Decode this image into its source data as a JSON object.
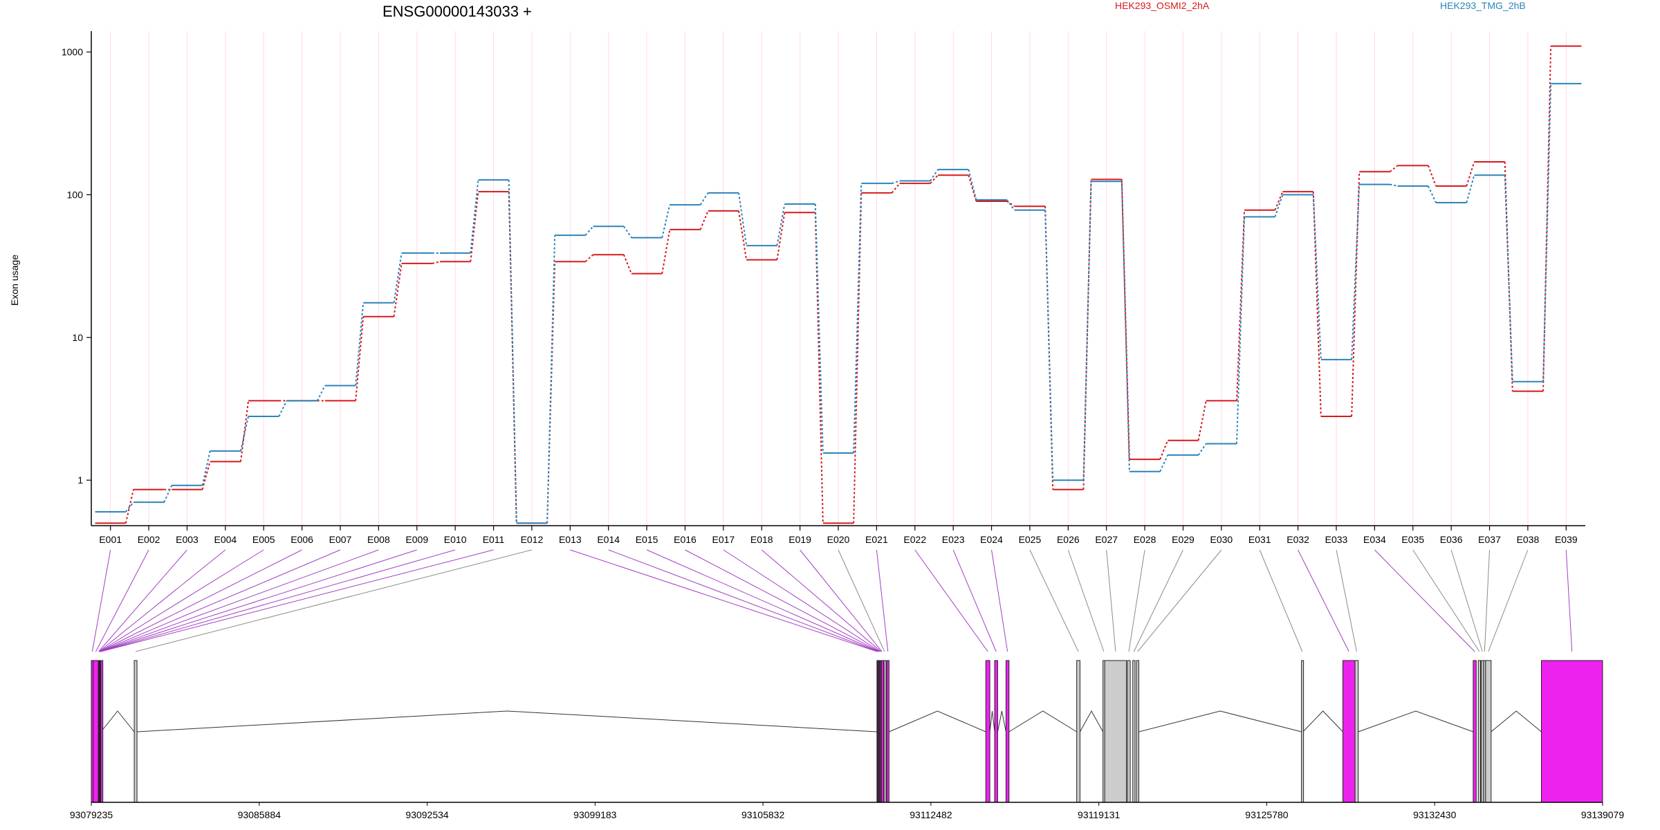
{
  "chart_data": {
    "type": "line",
    "title": "ENSG00000143033 +",
    "ylabel": "Exon usage",
    "xlabel": "",
    "yscale": "log",
    "ylim": [
      0.48,
      1400
    ],
    "yticks": [
      {
        "value": 1,
        "label": "1"
      },
      {
        "value": 10,
        "label": "10"
      },
      {
        "value": 100,
        "label": "100"
      },
      {
        "value": 1000,
        "label": "1000"
      }
    ],
    "categories": [
      "E001",
      "E002",
      "E003",
      "E004",
      "E005",
      "E006",
      "E007",
      "E008",
      "E009",
      "E010",
      "E011",
      "E012",
      "E013",
      "E014",
      "E015",
      "E016",
      "E017",
      "E018",
      "E019",
      "E020",
      "E021",
      "E022",
      "E023",
      "E024",
      "E025",
      "E026",
      "E027",
      "E028",
      "E029",
      "E030",
      "E031",
      "E032",
      "E033",
      "E034",
      "E035",
      "E036",
      "E037",
      "E038",
      "E039"
    ],
    "legend_position": "top",
    "series": [
      {
        "name": "HEK293_OSMI2_2hA",
        "color": "#d7191c",
        "values": [
          0.5,
          0.86,
          0.86,
          1.35,
          3.6,
          3.6,
          3.6,
          14,
          33,
          34,
          105,
          0.5,
          34,
          38,
          28,
          57,
          77,
          35,
          75,
          0.5,
          103,
          120,
          137,
          90,
          83,
          0.86,
          128,
          1.4,
          1.9,
          3.6,
          78,
          105,
          2.8,
          145,
          160,
          115,
          170,
          4.2,
          1100
        ]
      },
      {
        "name": "HEK293_TMG_2hB",
        "color": "#2b83ba",
        "values": [
          0.6,
          0.7,
          0.92,
          1.6,
          2.8,
          3.6,
          4.6,
          17.5,
          39,
          39,
          127,
          0.5,
          52,
          60,
          50,
          85,
          103,
          44,
          86,
          1.55,
          120,
          125,
          150,
          92,
          78,
          1.0,
          124,
          1.15,
          1.5,
          1.8,
          70,
          100,
          7.0,
          118,
          115,
          88,
          137,
          4.9,
          600
        ]
      }
    ],
    "gene_model": {
      "genomic_range": [
        93079235,
        93139079
      ],
      "genomic_ticks": [
        93079235,
        93085884,
        93092534,
        93099183,
        93105832,
        93112482,
        93119131,
        93125780,
        93132430,
        93139079
      ],
      "highlight_color": "#ee22ee",
      "default_color": "#cccccc",
      "exons": [
        {
          "id": "E001",
          "start": 93079235,
          "end": 93079310,
          "highlight": true
        },
        {
          "id": "E002",
          "start": 93079310,
          "end": 93079515,
          "highlight": true
        },
        {
          "id": "E003",
          "start": 93079515,
          "end": 93079540,
          "highlight": true
        },
        {
          "id": "E004",
          "start": 93079540,
          "end": 93079550,
          "highlight": true
        },
        {
          "id": "E005",
          "start": 93079550,
          "end": 93079560,
          "highlight": true
        },
        {
          "id": "E006",
          "start": 93079560,
          "end": 93079570,
          "highlight": true
        },
        {
          "id": "E007",
          "start": 93079570,
          "end": 93079580,
          "highlight": true
        },
        {
          "id": "E008",
          "start": 93079580,
          "end": 93079590,
          "highlight": true
        },
        {
          "id": "E009",
          "start": 93079590,
          "end": 93079600,
          "highlight": true
        },
        {
          "id": "E010",
          "start": 93079600,
          "end": 93079610,
          "highlight": true
        },
        {
          "id": "E011",
          "start": 93079610,
          "end": 93079620,
          "highlight": true
        },
        {
          "id": "E012",
          "start": 93080935,
          "end": 93081045,
          "highlight": false
        },
        {
          "id": "E013",
          "start": 93110345,
          "end": 93110365,
          "highlight": true
        },
        {
          "id": "E014",
          "start": 93110365,
          "end": 93110395,
          "highlight": true
        },
        {
          "id": "E015",
          "start": 93110395,
          "end": 93110425,
          "highlight": true
        },
        {
          "id": "E016",
          "start": 93110425,
          "end": 93110455,
          "highlight": true
        },
        {
          "id": "E017",
          "start": 93110455,
          "end": 93110485,
          "highlight": true
        },
        {
          "id": "E018",
          "start": 93110485,
          "end": 93110525,
          "highlight": true
        },
        {
          "id": "E019",
          "start": 93110525,
          "end": 93110555,
          "highlight": true
        },
        {
          "id": "E020",
          "start": 93110625,
          "end": 93110665,
          "highlight": false
        },
        {
          "id": "E021",
          "start": 93110735,
          "end": 93110825,
          "highlight": true
        },
        {
          "id": "E022",
          "start": 93114655,
          "end": 93114815,
          "highlight": true
        },
        {
          "id": "E023",
          "start": 93115005,
          "end": 93115125,
          "highlight": true
        },
        {
          "id": "E024",
          "start": 93115455,
          "end": 93115575,
          "highlight": true
        },
        {
          "id": "E025",
          "start": 93118255,
          "end": 93118385,
          "highlight": false
        },
        {
          "id": "E026",
          "start": 93119295,
          "end": 93119365,
          "highlight": false
        },
        {
          "id": "E027",
          "start": 93119365,
          "end": 93120225,
          "highlight": false
        },
        {
          "id": "E028",
          "start": 93120265,
          "end": 93120375,
          "highlight": false
        },
        {
          "id": "E029",
          "start": 93120475,
          "end": 93120565,
          "highlight": false
        },
        {
          "id": "E030",
          "start": 93120625,
          "end": 93120715,
          "highlight": false
        },
        {
          "id": "E031",
          "start": 93127155,
          "end": 93127215,
          "highlight": false
        },
        {
          "id": "E032",
          "start": 93128795,
          "end": 93129275,
          "highlight": true
        },
        {
          "id": "E033",
          "start": 93129275,
          "end": 93129405,
          "highlight": false
        },
        {
          "id": "E034",
          "start": 93133955,
          "end": 93134075,
          "highlight": true
        },
        {
          "id": "E035",
          "start": 93134155,
          "end": 93134245,
          "highlight": false
        },
        {
          "id": "E036",
          "start": 93134275,
          "end": 93134365,
          "highlight": false
        },
        {
          "id": "E037",
          "start": 93134365,
          "end": 93134445,
          "highlight": false
        },
        {
          "id": "E038",
          "start": 93134445,
          "end": 93134665,
          "highlight": false
        },
        {
          "id": "E039",
          "start": 93136655,
          "end": 93139079,
          "highlight": true
        }
      ]
    }
  }
}
